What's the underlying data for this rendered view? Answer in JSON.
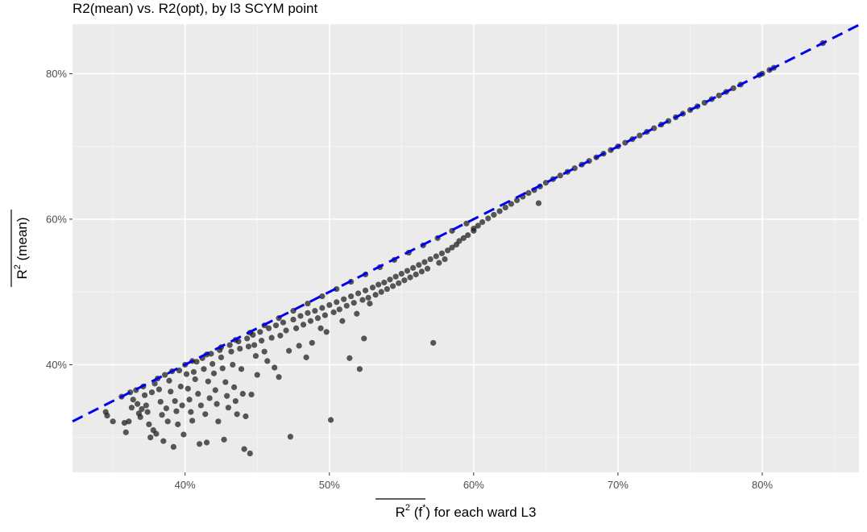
{
  "chart_data": {
    "type": "scatter",
    "title": "R2(mean) vs. R2(opt), by l3 SCYM point",
    "xlabel": {
      "base": "R",
      "sup": "2",
      "mid": " (f",
      "sup2": "*",
      "end": ")",
      "rest": " for each ward L3"
    },
    "ylabel": {
      "base": "R",
      "sup": "2",
      "rest": " (mean)"
    },
    "xlim": [
      0.322,
      0.867
    ],
    "ylim": [
      0.252,
      0.868
    ],
    "x_ticks": [
      0.4,
      0.5,
      0.6,
      0.7,
      0.8
    ],
    "x_tick_labels": [
      "40%",
      "50%",
      "60%",
      "70%",
      "80%"
    ],
    "y_ticks": [
      0.4,
      0.6,
      0.8
    ],
    "y_tick_labels": [
      "40%",
      "60%",
      "80%"
    ],
    "grid": true,
    "panel_background": "#ebebeb",
    "point_color": "#1a1a1a",
    "reference_line": {
      "slope": 1,
      "intercept": 0,
      "color": "#0000ee",
      "style": "dashed"
    },
    "points": [
      [
        0.345,
        0.335
      ],
      [
        0.346,
        0.33
      ],
      [
        0.35,
        0.322
      ],
      [
        0.356,
        0.356
      ],
      [
        0.358,
        0.32
      ],
      [
        0.359,
        0.307
      ],
      [
        0.361,
        0.322
      ],
      [
        0.362,
        0.362
      ],
      [
        0.363,
        0.341
      ],
      [
        0.364,
        0.352
      ],
      [
        0.366,
        0.365
      ],
      [
        0.367,
        0.346
      ],
      [
        0.368,
        0.333
      ],
      [
        0.369,
        0.328
      ],
      [
        0.37,
        0.339
      ],
      [
        0.371,
        0.37
      ],
      [
        0.372,
        0.358
      ],
      [
        0.373,
        0.344
      ],
      [
        0.374,
        0.335
      ],
      [
        0.375,
        0.318
      ],
      [
        0.376,
        0.3
      ],
      [
        0.377,
        0.362
      ],
      [
        0.378,
        0.31
      ],
      [
        0.379,
        0.374
      ],
      [
        0.38,
        0.305
      ],
      [
        0.381,
        0.381
      ],
      [
        0.382,
        0.366
      ],
      [
        0.383,
        0.349
      ],
      [
        0.384,
        0.331
      ],
      [
        0.385,
        0.295
      ],
      [
        0.386,
        0.386
      ],
      [
        0.387,
        0.34
      ],
      [
        0.388,
        0.322
      ],
      [
        0.389,
        0.378
      ],
      [
        0.39,
        0.363
      ],
      [
        0.391,
        0.391
      ],
      [
        0.392,
        0.287
      ],
      [
        0.393,
        0.35
      ],
      [
        0.394,
        0.336
      ],
      [
        0.395,
        0.318
      ],
      [
        0.396,
        0.392
      ],
      [
        0.397,
        0.37
      ],
      [
        0.398,
        0.344
      ],
      [
        0.399,
        0.304
      ],
      [
        0.4,
        0.4
      ],
      [
        0.401,
        0.387
      ],
      [
        0.402,
        0.367
      ],
      [
        0.403,
        0.352
      ],
      [
        0.404,
        0.335
      ],
      [
        0.405,
        0.323
      ],
      [
        0.406,
        0.39
      ],
      [
        0.407,
        0.38
      ],
      [
        0.408,
        0.404
      ],
      [
        0.409,
        0.36
      ],
      [
        0.41,
        0.291
      ],
      [
        0.411,
        0.344
      ],
      [
        0.412,
        0.409
      ],
      [
        0.413,
        0.394
      ],
      [
        0.414,
        0.332
      ],
      [
        0.415,
        0.293
      ],
      [
        0.416,
        0.377
      ],
      [
        0.417,
        0.354
      ],
      [
        0.418,
        0.415
      ],
      [
        0.419,
        0.401
      ],
      [
        0.42,
        0.388
      ],
      [
        0.421,
        0.365
      ],
      [
        0.422,
        0.346
      ],
      [
        0.423,
        0.322
      ],
      [
        0.424,
        0.42
      ],
      [
        0.425,
        0.41
      ],
      [
        0.426,
        0.395
      ],
      [
        0.427,
        0.297
      ],
      [
        0.428,
        0.376
      ],
      [
        0.429,
        0.357
      ],
      [
        0.43,
        0.341
      ],
      [
        0.431,
        0.427
      ],
      [
        0.432,
        0.418
      ],
      [
        0.433,
        0.4
      ],
      [
        0.434,
        0.369
      ],
      [
        0.435,
        0.35
      ],
      [
        0.436,
        0.332
      ],
      [
        0.437,
        0.432
      ],
      [
        0.438,
        0.422
      ],
      [
        0.439,
        0.394
      ],
      [
        0.44,
        0.36
      ],
      [
        0.441,
        0.284
      ],
      [
        0.442,
        0.329
      ],
      [
        0.443,
        0.436
      ],
      [
        0.444,
        0.425
      ],
      [
        0.445,
        0.278
      ],
      [
        0.446,
        0.359
      ],
      [
        0.447,
        0.441
      ],
      [
        0.448,
        0.427
      ],
      [
        0.449,
        0.412
      ],
      [
        0.45,
        0.386
      ],
      [
        0.452,
        0.445
      ],
      [
        0.453,
        0.433
      ],
      [
        0.455,
        0.418
      ],
      [
        0.457,
        0.405
      ],
      [
        0.458,
        0.45
      ],
      [
        0.46,
        0.437
      ],
      [
        0.462,
        0.396
      ],
      [
        0.463,
        0.454
      ],
      [
        0.465,
        0.383
      ],
      [
        0.466,
        0.44
      ],
      [
        0.468,
        0.458
      ],
      [
        0.47,
        0.447
      ],
      [
        0.472,
        0.419
      ],
      [
        0.473,
        0.301
      ],
      [
        0.475,
        0.462
      ],
      [
        0.477,
        0.45
      ],
      [
        0.479,
        0.426
      ],
      [
        0.48,
        0.467
      ],
      [
        0.482,
        0.455
      ],
      [
        0.484,
        0.41
      ],
      [
        0.485,
        0.471
      ],
      [
        0.487,
        0.46
      ],
      [
        0.488,
        0.43
      ],
      [
        0.49,
        0.474
      ],
      [
        0.492,
        0.464
      ],
      [
        0.494,
        0.45
      ],
      [
        0.495,
        0.478
      ],
      [
        0.497,
        0.468
      ],
      [
        0.498,
        0.445
      ],
      [
        0.5,
        0.482
      ],
      [
        0.501,
        0.324
      ],
      [
        0.503,
        0.472
      ],
      [
        0.505,
        0.486
      ],
      [
        0.507,
        0.476
      ],
      [
        0.509,
        0.46
      ],
      [
        0.51,
        0.49
      ],
      [
        0.512,
        0.481
      ],
      [
        0.514,
        0.409
      ],
      [
        0.515,
        0.494
      ],
      [
        0.517,
        0.485
      ],
      [
        0.519,
        0.47
      ],
      [
        0.52,
        0.498
      ],
      [
        0.521,
        0.394
      ],
      [
        0.523,
        0.489
      ],
      [
        0.524,
        0.436
      ],
      [
        0.525,
        0.502
      ],
      [
        0.527,
        0.492
      ],
      [
        0.528,
        0.484
      ],
      [
        0.53,
        0.506
      ],
      [
        0.532,
        0.496
      ],
      [
        0.534,
        0.51
      ],
      [
        0.536,
        0.5
      ],
      [
        0.538,
        0.513
      ],
      [
        0.54,
        0.504
      ],
      [
        0.542,
        0.517
      ],
      [
        0.544,
        0.508
      ],
      [
        0.546,
        0.521
      ],
      [
        0.548,
        0.512
      ],
      [
        0.55,
        0.525
      ],
      [
        0.552,
        0.516
      ],
      [
        0.554,
        0.529
      ],
      [
        0.556,
        0.52
      ],
      [
        0.558,
        0.533
      ],
      [
        0.56,
        0.524
      ],
      [
        0.562,
        0.537
      ],
      [
        0.564,
        0.528
      ],
      [
        0.566,
        0.541
      ],
      [
        0.568,
        0.532
      ],
      [
        0.57,
        0.545
      ],
      [
        0.572,
        0.43
      ],
      [
        0.574,
        0.549
      ],
      [
        0.576,
        0.54
      ],
      [
        0.578,
        0.553
      ],
      [
        0.58,
        0.545
      ],
      [
        0.582,
        0.557
      ],
      [
        0.585,
        0.561
      ],
      [
        0.588,
        0.565
      ],
      [
        0.59,
        0.57
      ],
      [
        0.593,
        0.574
      ],
      [
        0.596,
        0.578
      ],
      [
        0.6,
        0.587
      ],
      [
        0.6,
        0.584
      ],
      [
        0.603,
        0.591
      ],
      [
        0.606,
        0.596
      ],
      [
        0.61,
        0.601
      ],
      [
        0.614,
        0.606
      ],
      [
        0.618,
        0.611
      ],
      [
        0.622,
        0.616
      ],
      [
        0.626,
        0.621
      ],
      [
        0.63,
        0.626
      ],
      [
        0.634,
        0.631
      ],
      [
        0.638,
        0.636
      ],
      [
        0.642,
        0.64
      ],
      [
        0.645,
        0.622
      ],
      [
        0.646,
        0.645
      ],
      [
        0.65,
        0.65
      ],
      [
        0.655,
        0.655
      ],
      [
        0.66,
        0.66
      ],
      [
        0.665,
        0.665
      ],
      [
        0.67,
        0.67
      ],
      [
        0.675,
        0.675
      ],
      [
        0.68,
        0.68
      ],
      [
        0.685,
        0.685
      ],
      [
        0.69,
        0.69
      ],
      [
        0.695,
        0.695
      ],
      [
        0.7,
        0.7
      ],
      [
        0.705,
        0.705
      ],
      [
        0.71,
        0.71
      ],
      [
        0.715,
        0.715
      ],
      [
        0.72,
        0.72
      ],
      [
        0.725,
        0.725
      ],
      [
        0.73,
        0.73
      ],
      [
        0.735,
        0.735
      ],
      [
        0.74,
        0.74
      ],
      [
        0.745,
        0.745
      ],
      [
        0.75,
        0.75
      ],
      [
        0.755,
        0.755
      ],
      [
        0.76,
        0.76
      ],
      [
        0.765,
        0.765
      ],
      [
        0.77,
        0.77
      ],
      [
        0.775,
        0.775
      ],
      [
        0.78,
        0.78
      ],
      [
        0.785,
        0.785
      ],
      [
        0.798,
        0.798
      ],
      [
        0.8,
        0.8
      ],
      [
        0.805,
        0.805
      ],
      [
        0.808,
        0.808
      ],
      [
        0.842,
        0.842
      ],
      [
        0.405,
        0.405
      ],
      [
        0.415,
        0.414
      ],
      [
        0.425,
        0.424
      ],
      [
        0.435,
        0.434
      ],
      [
        0.445,
        0.444
      ],
      [
        0.455,
        0.454
      ],
      [
        0.465,
        0.464
      ],
      [
        0.475,
        0.474
      ],
      [
        0.485,
        0.484
      ],
      [
        0.495,
        0.494
      ],
      [
        0.505,
        0.504
      ],
      [
        0.515,
        0.514
      ],
      [
        0.525,
        0.524
      ],
      [
        0.535,
        0.534
      ],
      [
        0.545,
        0.544
      ],
      [
        0.555,
        0.554
      ],
      [
        0.565,
        0.564
      ],
      [
        0.575,
        0.574
      ],
      [
        0.585,
        0.584
      ],
      [
        0.595,
        0.594
      ]
    ]
  }
}
